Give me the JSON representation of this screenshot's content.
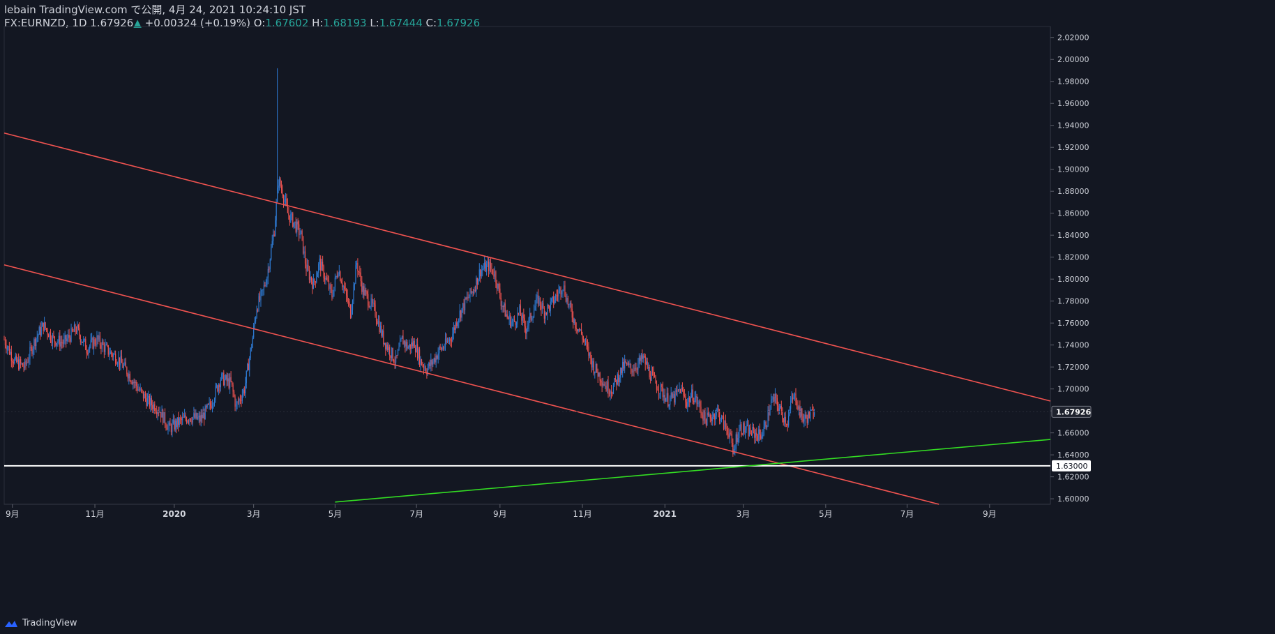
{
  "header": {
    "published_line": "lebain TradingView.com で公開, 4月 24, 2021 10:24:10 JST",
    "symbol": "FX:EURNZD, 1D",
    "last": "1.67926",
    "change": "+0.00324 (+0.19%)",
    "open_label": "O:",
    "open": "1.67602",
    "high_label": "H:",
    "high": "1.68193",
    "low_label": "L:",
    "low": "1.67444",
    "close_label": "C:",
    "close": "1.67926"
  },
  "footer": {
    "brand": "TradingView"
  },
  "colors": {
    "background": "#131722",
    "up": "#2e7bd4",
    "down": "#ef5350",
    "channel": "#f05350",
    "support": "#ffffff",
    "trend": "#33dd22",
    "text": "#d1d4dc",
    "accent": "#26a69a"
  },
  "chart_data": {
    "type": "candlestick",
    "symbol": "EURNZD",
    "interval": "1D",
    "y_axis": {
      "ylim": [
        1.595,
        2.03
      ],
      "ticks": [
        1.6,
        1.62,
        1.64,
        1.66,
        1.68,
        1.7,
        1.72,
        1.74,
        1.76,
        1.78,
        1.8,
        1.82,
        1.84,
        1.86,
        1.88,
        1.9,
        1.92,
        1.94,
        1.96,
        1.98,
        2.0,
        2.02
      ],
      "tick_labels": [
        "1.60000",
        "1.62000",
        "1.64000",
        "1.66000",
        "1.68000",
        "1.70000",
        "1.72000",
        "1.74000",
        "1.76000",
        "1.78000",
        "1.80000",
        "1.82000",
        "1.84000",
        "1.86000",
        "1.88000",
        "1.90000",
        "1.92000",
        "1.94000",
        "1.96000",
        "1.98000",
        "2.00000",
        "2.02000"
      ],
      "last_price_label": "1.67926",
      "last_price": 1.67926,
      "support_label": "1.63000",
      "support_price": 1.63
    },
    "x_axis": {
      "xlim": [
        0,
        1015
      ],
      "ticks": [
        {
          "day": 8,
          "label": "9月"
        },
        {
          "day": 88,
          "label": "11月"
        },
        {
          "day": 165,
          "label": "2020"
        },
        {
          "day": 242,
          "label": "3月"
        },
        {
          "day": 321,
          "label": "5月"
        },
        {
          "day": 400,
          "label": "7月"
        },
        {
          "day": 481,
          "label": "9月"
        },
        {
          "day": 561,
          "label": "11月"
        },
        {
          "day": 641,
          "label": "2021"
        },
        {
          "day": 717,
          "label": "3月"
        },
        {
          "day": 797,
          "label": "5月"
        },
        {
          "day": 876,
          "label": "7月"
        },
        {
          "day": 956,
          "label": "9月"
        }
      ]
    },
    "price_anchors": [
      [
        0,
        1.745
      ],
      [
        10,
        1.725
      ],
      [
        20,
        1.72
      ],
      [
        30,
        1.745
      ],
      [
        38,
        1.758
      ],
      [
        48,
        1.745
      ],
      [
        58,
        1.742
      ],
      [
        70,
        1.755
      ],
      [
        80,
        1.737
      ],
      [
        90,
        1.745
      ],
      [
        100,
        1.735
      ],
      [
        110,
        1.728
      ],
      [
        120,
        1.715
      ],
      [
        130,
        1.7
      ],
      [
        140,
        1.688
      ],
      [
        150,
        1.682
      ],
      [
        160,
        1.664
      ],
      [
        170,
        1.67
      ],
      [
        180,
        1.675
      ],
      [
        190,
        1.672
      ],
      [
        200,
        1.685
      ],
      [
        210,
        1.71
      ],
      [
        220,
        1.705
      ],
      [
        225,
        1.684
      ],
      [
        233,
        1.7
      ],
      [
        240,
        1.74
      ],
      [
        245,
        1.775
      ],
      [
        250,
        1.785
      ],
      [
        255,
        1.803
      ],
      [
        262,
        1.845
      ],
      [
        266,
        1.89
      ],
      [
        270,
        1.88
      ],
      [
        275,
        1.86
      ],
      [
        282,
        1.85
      ],
      [
        288,
        1.84
      ],
      [
        293,
        1.81
      ],
      [
        300,
        1.795
      ],
      [
        306,
        1.815
      ],
      [
        312,
        1.8
      ],
      [
        318,
        1.785
      ],
      [
        324,
        1.81
      ],
      [
        330,
        1.79
      ],
      [
        336,
        1.77
      ],
      [
        342,
        1.815
      ],
      [
        348,
        1.79
      ],
      [
        354,
        1.78
      ],
      [
        360,
        1.77
      ],
      [
        368,
        1.745
      ],
      [
        374,
        1.735
      ],
      [
        380,
        1.725
      ],
      [
        386,
        1.745
      ],
      [
        392,
        1.738
      ],
      [
        398,
        1.742
      ],
      [
        404,
        1.725
      ],
      [
        410,
        1.718
      ],
      [
        416,
        1.725
      ],
      [
        422,
        1.735
      ],
      [
        428,
        1.74
      ],
      [
        434,
        1.748
      ],
      [
        440,
        1.765
      ],
      [
        448,
        1.78
      ],
      [
        455,
        1.79
      ],
      [
        462,
        1.808
      ],
      [
        470,
        1.812
      ],
      [
        476,
        1.805
      ],
      [
        482,
        1.78
      ],
      [
        488,
        1.765
      ],
      [
        494,
        1.76
      ],
      [
        500,
        1.77
      ],
      [
        506,
        1.755
      ],
      [
        512,
        1.768
      ],
      [
        518,
        1.782
      ],
      [
        524,
        1.77
      ],
      [
        530,
        1.776
      ],
      [
        536,
        1.785
      ],
      [
        542,
        1.795
      ],
      [
        548,
        1.775
      ],
      [
        554,
        1.76
      ],
      [
        560,
        1.75
      ],
      [
        566,
        1.735
      ],
      [
        572,
        1.72
      ],
      [
        578,
        1.712
      ],
      [
        584,
        1.702
      ],
      [
        590,
        1.7
      ],
      [
        596,
        1.712
      ],
      [
        602,
        1.722
      ],
      [
        608,
        1.718
      ],
      [
        614,
        1.722
      ],
      [
        620,
        1.728
      ],
      [
        626,
        1.715
      ],
      [
        632,
        1.705
      ],
      [
        638,
        1.698
      ],
      [
        644,
        1.69
      ],
      [
        650,
        1.692
      ],
      [
        656,
        1.7
      ],
      [
        662,
        1.688
      ],
      [
        668,
        1.695
      ],
      [
        674,
        1.685
      ],
      [
        680,
        1.672
      ],
      [
        686,
        1.675
      ],
      [
        692,
        1.68
      ],
      [
        698,
        1.668
      ],
      [
        704,
        1.66
      ],
      [
        707,
        1.64
      ],
      [
        710,
        1.655
      ],
      [
        714,
        1.665
      ],
      [
        720,
        1.662
      ],
      [
        726,
        1.66
      ],
      [
        732,
        1.658
      ],
      [
        736,
        1.66
      ],
      [
        740,
        1.672
      ],
      [
        744,
        1.688
      ],
      [
        748,
        1.69
      ],
      [
        752,
        1.682
      ],
      [
        756,
        1.675
      ],
      [
        760,
        1.67
      ],
      [
        764,
        1.69
      ],
      [
        768,
        1.693
      ],
      [
        772,
        1.678
      ],
      [
        776,
        1.672
      ],
      [
        780,
        1.675
      ],
      [
        786,
        1.679
      ]
    ],
    "annotations": [
      {
        "type": "channel_upper",
        "from": [
          0,
          1.933
        ],
        "to": [
          1015,
          1.689
        ]
      },
      {
        "type": "channel_lower",
        "from": [
          0,
          1.813
        ],
        "to": [
          1015,
          1.569
        ]
      },
      {
        "type": "horizontal_support",
        "price": 1.63
      },
      {
        "type": "trendline",
        "from": [
          321,
          1.597
        ],
        "to": [
          1015,
          1.654
        ]
      }
    ]
  }
}
